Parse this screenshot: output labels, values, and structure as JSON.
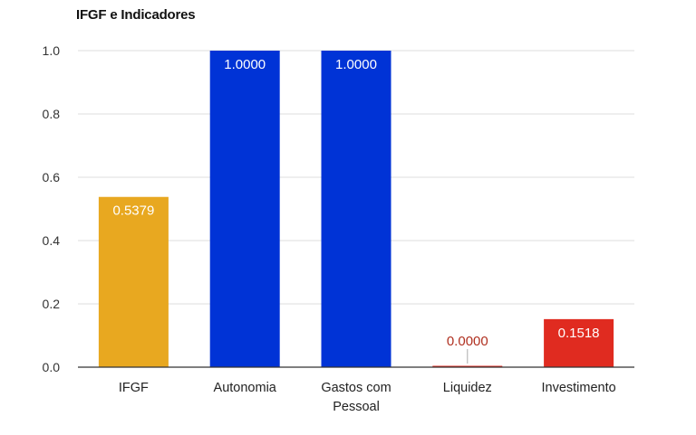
{
  "chart_data": {
    "type": "bar",
    "title": "IFGF e Indicadores",
    "xlabel": "",
    "ylabel": "",
    "ylim": [
      0,
      1.0
    ],
    "yticks": [
      "0.0",
      "0.2",
      "0.4",
      "0.6",
      "0.8",
      "1.0"
    ],
    "grid": true,
    "categories": [
      [
        "IFGF"
      ],
      [
        "Autonomia"
      ],
      [
        "Gastos com",
        "Pessoal"
      ],
      [
        "Liquidez"
      ],
      [
        "Investimento"
      ]
    ],
    "values": [
      0.5379,
      1.0,
      1.0,
      0.0,
      0.1518
    ],
    "value_labels": [
      "0.5379",
      "1.0000",
      "1.0000",
      "0.0000",
      "0.1518"
    ],
    "colors": [
      "#E8A820",
      "#0033D6",
      "#0033D6",
      "#E02B20",
      "#E02B20"
    ],
    "label_colors": [
      "#ffffff",
      "#ffffff",
      "#ffffff",
      "#B03020",
      "#ffffff"
    ]
  }
}
